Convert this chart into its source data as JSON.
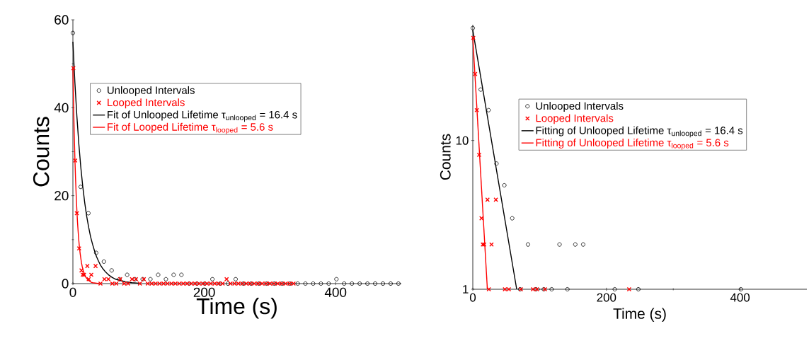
{
  "chart_data": [
    {
      "type": "scatter",
      "xlabel": "Time (s)",
      "ylabel": "Counts",
      "xlim": [
        0,
        500
      ],
      "ylim": [
        0,
        60
      ],
      "xticks": [
        0,
        200,
        400
      ],
      "yticks": [
        0,
        20,
        40,
        60
      ],
      "legend": "top",
      "grid": false,
      "series": [
        {
          "name": "Unlooped Intervals",
          "color": "#000000",
          "marker": "circle",
          "x": [
            0,
            11.8,
            23.6,
            35.4,
            47.2,
            59,
            70.8,
            82.6,
            94.4,
            106.2,
            118,
            129.8,
            141.6,
            153.4,
            165.2,
            177,
            188.8,
            200.6,
            212.4,
            224.2,
            236,
            247.8,
            259.6,
            271.4,
            283.2,
            295,
            306.8,
            318.6,
            330.4,
            342.2,
            354,
            365.8,
            377.6,
            389.4,
            401.2,
            413,
            424.8,
            436.6,
            448.4,
            460.2,
            472,
            483.8,
            495.6
          ],
          "values": [
            57,
            22,
            16,
            7,
            5,
            3,
            1,
            2,
            1,
            1,
            1,
            2,
            1,
            2,
            2,
            0,
            0,
            0,
            1,
            0,
            0,
            1,
            0,
            0,
            0,
            0,
            0,
            0,
            0,
            0,
            0,
            0,
            0,
            0,
            1,
            0,
            0,
            0,
            0,
            0,
            0,
            0,
            0
          ]
        },
        {
          "name": "Looped Intervals",
          "color": "#ff0000",
          "marker": "cross",
          "x": [
            0.7,
            3.5,
            6,
            9.5,
            13,
            15,
            17,
            22,
            24,
            28,
            34.5,
            42,
            48,
            54,
            60,
            66,
            72,
            78,
            84,
            90,
            96,
            102,
            108,
            114,
            120,
            126,
            132,
            138,
            144,
            150,
            156,
            162,
            168,
            174,
            180,
            186,
            192,
            198,
            204,
            210,
            216,
            222,
            228,
            234,
            240,
            246,
            252,
            258,
            264,
            270,
            276,
            282,
            288,
            294,
            300,
            306,
            312,
            318,
            324,
            330,
            336
          ],
          "values": [
            49,
            28,
            16,
            8,
            3,
            2,
            2,
            4,
            1,
            2,
            4,
            0,
            1,
            1,
            0,
            0,
            1,
            0,
            0,
            1,
            1,
            0,
            1,
            0,
            0,
            0,
            0,
            0,
            0,
            0,
            0,
            0,
            0,
            0,
            0,
            0,
            0,
            0,
            0,
            0,
            0,
            0,
            0,
            1,
            0,
            0,
            0,
            0,
            0,
            0,
            0,
            0,
            0,
            0,
            0,
            0,
            0,
            0,
            0,
            0,
            0
          ]
        },
        {
          "name": "Fit of Unlooped Lifetime τ$_{unlooped}$ = 16.4 s",
          "type": "line",
          "color": "#000000",
          "marker": "none",
          "line_style": "solid",
          "x": [
            0,
            3,
            6,
            9,
            12,
            15,
            18,
            21,
            24,
            27,
            30,
            33,
            36,
            39,
            42,
            45,
            50,
            55,
            60,
            65,
            70,
            80,
            90,
            100
          ],
          "values": [
            55,
            45.8,
            38.2,
            31.8,
            26.5,
            22.1,
            18.4,
            15.3,
            12.8,
            10.6,
            8.9,
            7.4,
            6.1,
            5.1,
            4.2,
            3.5,
            2.6,
            1.9,
            1.4,
            1.0,
            0.8,
            0.4,
            0.2,
            0.1
          ]
        },
        {
          "name": "Fit of Looped Lifetime τ$_{looped}$ = 5.6 s",
          "type": "line",
          "color": "#ff0000",
          "marker": "none",
          "line_style": "solid",
          "x": [
            0,
            1,
            2,
            3,
            4,
            5,
            6,
            7,
            8,
            9,
            10,
            11,
            12,
            13,
            14,
            15,
            16,
            17,
            18,
            19,
            20,
            22,
            24,
            26,
            28,
            30,
            35,
            40
          ],
          "values": [
            49,
            41.0,
            34.3,
            28.7,
            24.0,
            20.1,
            16.8,
            14.0,
            11.8,
            9.8,
            8.2,
            6.9,
            5.8,
            4.8,
            4.0,
            3.4,
            2.8,
            2.4,
            2.0,
            1.6,
            1.4,
            1.0,
            0.7,
            0.5,
            0.3,
            0.2,
            0.1,
            0
          ]
        }
      ]
    },
    {
      "type": "scatter",
      "xlabel": "Time (s)",
      "ylabel": "Counts",
      "log": "y",
      "xlim": [
        0,
        500
      ],
      "ylim": [
        1,
        60
      ],
      "xticks": [
        0,
        200,
        400
      ],
      "yticks": [
        1,
        10
      ],
      "legend": "top right",
      "grid": false,
      "series": [
        {
          "name": "Unlooped Intervals",
          "color": "#000000",
          "marker": "circle",
          "x": [
            0,
            11.8,
            23.6,
            35.4,
            47.2,
            59,
            70.8,
            82.6,
            94.4,
            106.2,
            118,
            129.8,
            141.6,
            153.4,
            165.2,
            212.4,
            247.8,
            401.2
          ],
          "values": [
            57,
            22,
            16,
            7,
            5,
            3,
            1,
            2,
            1,
            1,
            1,
            2,
            1,
            2,
            2,
            1,
            1,
            1
          ]
        },
        {
          "name": "Looped Intervals",
          "color": "#ff0000",
          "marker": "cross",
          "x": [
            0.7,
            3.5,
            6,
            9.5,
            13,
            15,
            17,
            22,
            24,
            28,
            34.5,
            48,
            54,
            72,
            90,
            96,
            108,
            234
          ],
          "values": [
            49,
            28,
            16,
            8,
            3,
            2,
            2,
            4,
            1,
            2,
            4,
            1,
            1,
            1,
            1,
            1,
            1,
            1
          ]
        },
        {
          "name": "Fitting of Unlooped Lifetime τ$_{unlooped}$ = 16.4 s",
          "type": "line",
          "color": "#000000",
          "marker": "none",
          "line_style": "solid",
          "x": [
            0,
            65.7
          ],
          "values": [
            55,
            1
          ]
        },
        {
          "name": "Fitting of Unlooped Lifetime τ$_{looped}$ = 5.6 s",
          "type": "line",
          "color": "#ff0000",
          "marker": "none",
          "line_style": "solid",
          "x": [
            0,
            21.8
          ],
          "values": [
            49,
            1
          ]
        }
      ]
    }
  ]
}
